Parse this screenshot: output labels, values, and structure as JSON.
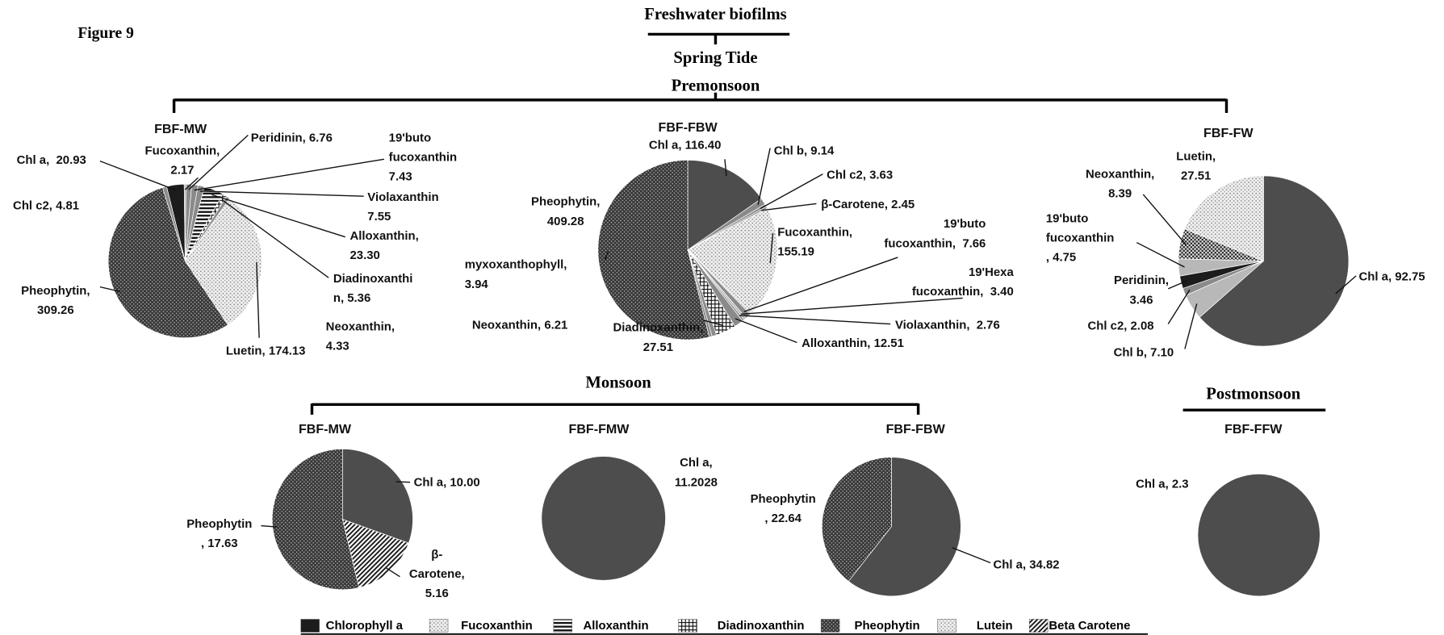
{
  "figure": "Figure 9",
  "title": "Freshwater biofilms",
  "subtitle": "Spring Tide",
  "seasons": [
    "Premonsoon",
    "Monsoon",
    "Postmonsoon"
  ],
  "legend": [
    {
      "name": "Chlorophyll a",
      "fill": "solid-black"
    },
    {
      "name": "Fucoxanthin",
      "fill": "dots"
    },
    {
      "name": "Alloxanthin",
      "fill": "hstripes"
    },
    {
      "name": "Diadinoxanthin",
      "fill": "grid"
    },
    {
      "name": "Pheophytin",
      "fill": "crosshatch"
    },
    {
      "name": "Lutein",
      "fill": "dots"
    },
    {
      "name": "Beta Carotene",
      "fill": "dstripes"
    }
  ],
  "chart_data": [
    {
      "type": "pie",
      "title": "FBF-MW",
      "values": [
        20.93,
        2.17,
        6.76,
        7.43,
        7.55,
        23.3,
        5.36,
        4.33,
        174.13,
        309.26,
        4.81
      ],
      "value_labels": [
        "Chl a,  20.93",
        "Fucoxanthin,\n2.17",
        "Peridinin, 6.76",
        "19'buto\nfucoxanthin\n7.43",
        "Violaxanthin\n7.55",
        "Alloxanthin,\n23.30",
        "Diadinoxanthi\nn, 5.36",
        "Neoxanthin,\n4.33",
        "Luetin, 174.13",
        "Pheophytin,\n309.26",
        "Chl c2, 4.81"
      ],
      "fills": [
        "solid-black",
        "light-gray",
        "gray",
        "gray",
        "gray",
        "hstripes",
        "grid",
        "gray",
        "dots",
        "crosshatch",
        "gray"
      ]
    },
    {
      "type": "pie",
      "title": "FBF-FBW",
      "values": [
        116.4,
        9.14,
        3.63,
        2.45,
        155.19,
        7.66,
        3.4,
        2.76,
        12.51,
        27.51,
        6.21,
        3.94,
        409.28
      ],
      "value_labels": [
        "Chl a, 116.40",
        "Chl b, 9.14",
        "Chl c2, 3.63",
        "β-Carotene, 2.45",
        "Fucoxanthin,\n155.19",
        "19'buto\nfucoxanthin,  7.66",
        "19'Hexa\nfucoxanthin,  3.40",
        "Violaxanthin,  2.76",
        "Alloxanthin, 12.51",
        "Diadinoxanthin,\n27.51",
        "Neoxanthin, 6.21",
        "myxoxanthophyll,\n3.94",
        "Pheophytin,\n409.28"
      ],
      "fills": [
        "solid-dark",
        "gray",
        "gray",
        "gray",
        "dots",
        "gray",
        "light-gray",
        "gray",
        "gray",
        "grid",
        "gray",
        "gray",
        "crosshatch"
      ]
    },
    {
      "type": "pie",
      "title": "FBF-FW",
      "values": [
        92.75,
        7.1,
        2.08,
        3.46,
        4.75,
        8.39,
        27.51
      ],
      "value_labels": [
        "Chl a, 92.75",
        "Chl b, 7.10",
        "Chl c2, 2.08",
        "Peridinin,\n3.46",
        "19'buto\nfucoxanthin\n, 4.75",
        "Neoxanthin,\n8.39",
        "Luetin,\n27.51"
      ],
      "fills": [
        "solid-dark",
        "light-gray",
        "gray",
        "solid-black",
        "light-gray",
        "dots-dark",
        "dots"
      ]
    },
    {
      "type": "pie",
      "title": "FBF-MW",
      "values": [
        10.0,
        5.16,
        17.63
      ],
      "value_labels": [
        "Chl a, 10.00",
        "β-\nCarotene,\n5.16",
        "Pheophytin\n, 17.63"
      ],
      "fills": [
        "solid-dark",
        "dstripes",
        "crosshatch"
      ]
    },
    {
      "type": "pie",
      "title": "FBF-FMW",
      "values": [
        11.2028
      ],
      "value_labels": [
        "Chl a,\n11.2028"
      ],
      "fills": [
        "solid-dark"
      ]
    },
    {
      "type": "pie",
      "title": "FBF-FBW",
      "values": [
        34.82,
        22.64
      ],
      "value_labels": [
        "Chl a, 34.82",
        "Pheophytin\n, 22.64"
      ],
      "fills": [
        "solid-dark",
        "crosshatch"
      ]
    },
    {
      "type": "pie",
      "title": "FBF-FFW",
      "values": [
        2.3
      ],
      "value_labels": [
        "Chl a, 2.3"
      ],
      "fills": [
        "solid-dark"
      ]
    }
  ]
}
